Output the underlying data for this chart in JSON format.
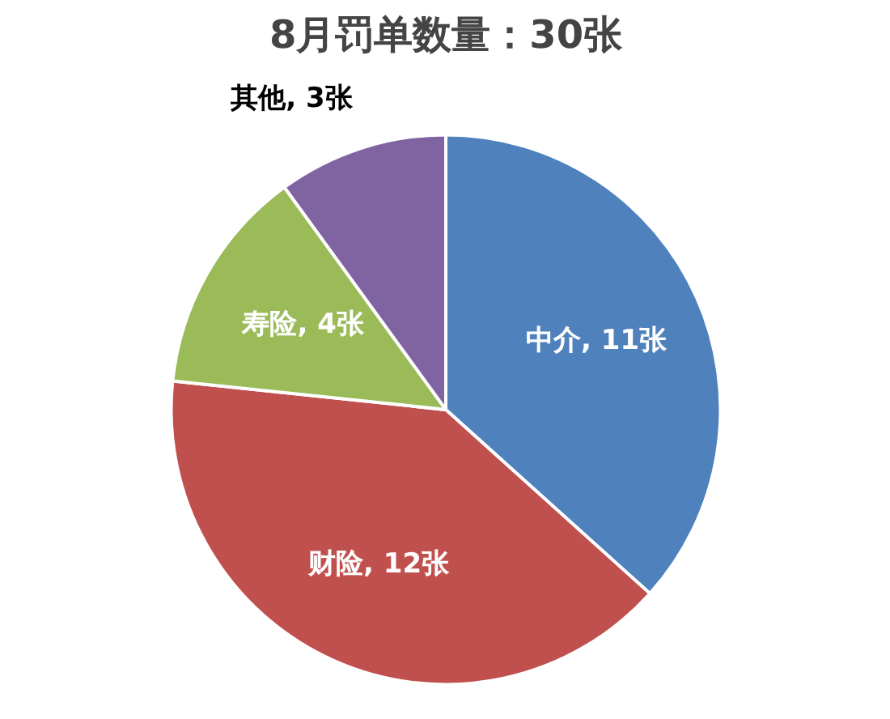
{
  "chart_data": {
    "type": "pie",
    "title": "8月罚单数量：30张",
    "categories": [
      "中介",
      "财险",
      "寿险",
      "其他"
    ],
    "values": [
      11,
      12,
      4,
      3
    ],
    "value_labels": [
      "11张",
      "12张",
      "4张",
      "3张"
    ],
    "colors": [
      "#4f81bd",
      "#c0504d",
      "#9bbb59",
      "#8064a2"
    ],
    "legend": false
  }
}
